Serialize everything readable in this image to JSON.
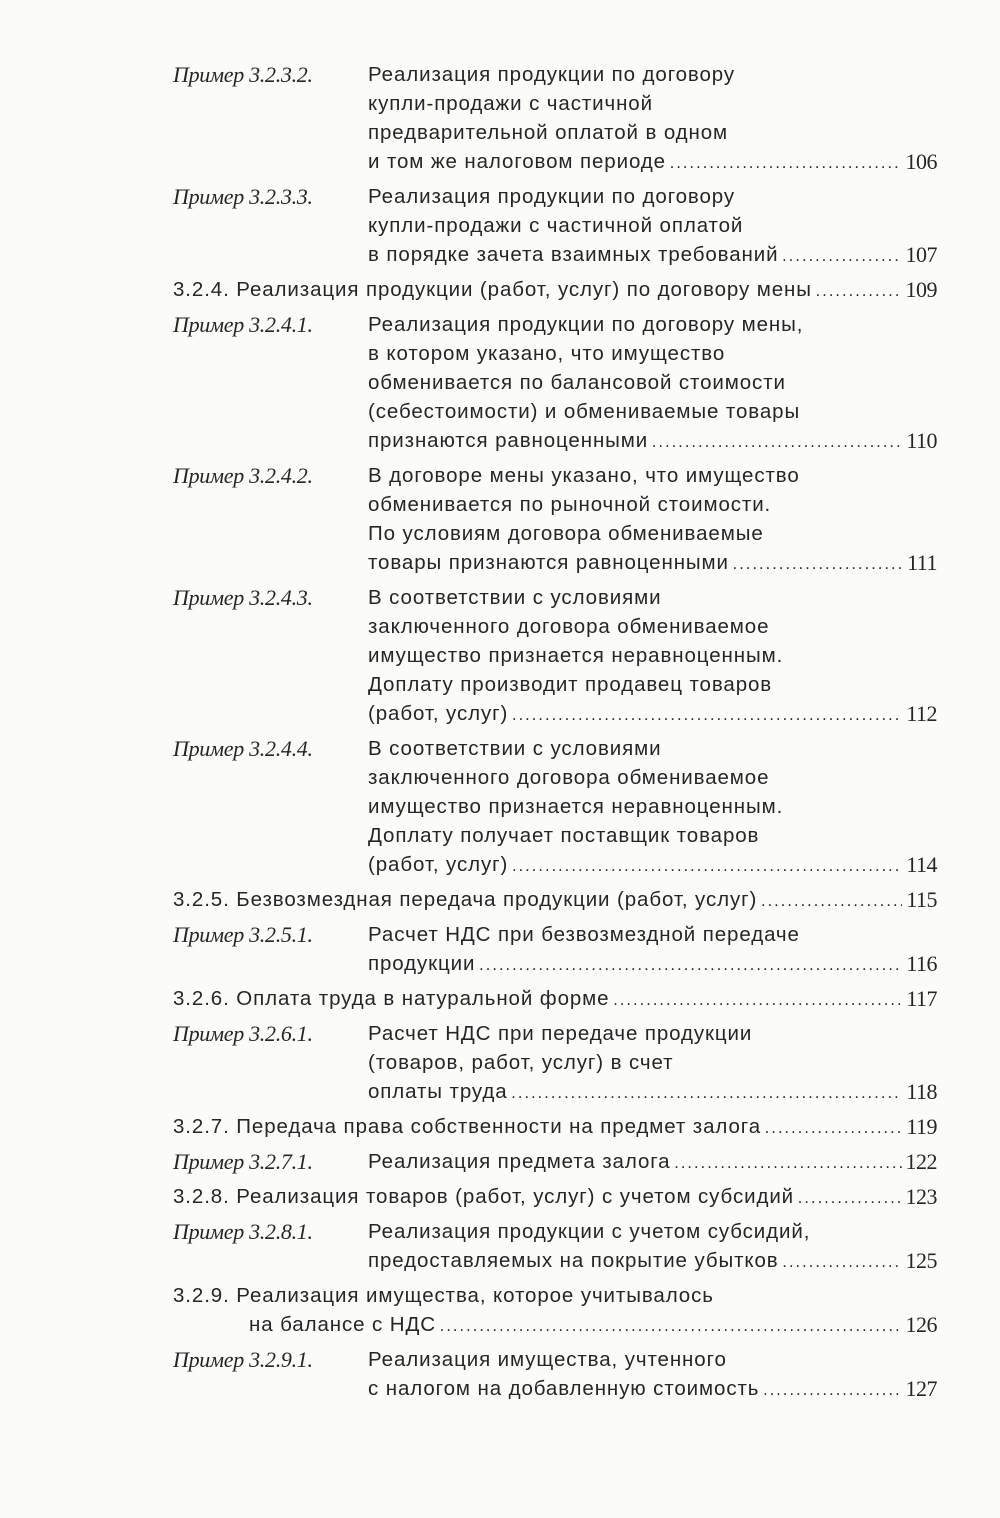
{
  "toc": [
    {
      "type": "example",
      "label": "Пример 3.2.3.2.",
      "lines": [
        "Реализация продукции по договору",
        "купли-продажи с частичной",
        "предварительной оплатой в одном",
        "и том же налоговом периоде"
      ],
      "page": "106"
    },
    {
      "type": "example",
      "label": "Пример 3.2.3.3.",
      "lines": [
        "Реализация продукции по договору",
        "купли-продажи с частичной оплатой",
        "в порядке зачета взаимных требований"
      ],
      "page": "107"
    },
    {
      "type": "section",
      "lines": [
        "3.2.4. Реализация продукции (работ, услуг) по договору мены"
      ],
      "page": "109"
    },
    {
      "type": "example",
      "label": "Пример 3.2.4.1.",
      "lines": [
        "Реализация продукции по договору мены,",
        "в котором указано, что имущество",
        "обменивается по балансовой стоимости",
        "(себестоимости) и обмениваемые товары",
        "признаются равноценными"
      ],
      "page": "110"
    },
    {
      "type": "example",
      "label": "Пример 3.2.4.2.",
      "lines": [
        "В договоре мены указано, что имущество",
        "обменивается по рыночной стоимости.",
        "По условиям договора обмениваемые",
        "товары признаются равноценными"
      ],
      "page": "111"
    },
    {
      "type": "example",
      "label": "Пример 3.2.4.3.",
      "lines": [
        "В соответствии с условиями",
        "заключенного договора обмениваемое",
        "имущество признается неравноценным.",
        "Доплату производит продавец товаров",
        "(работ, услуг)"
      ],
      "page": "112"
    },
    {
      "type": "example",
      "label": "Пример 3.2.4.4.",
      "lines": [
        "В соответствии с условиями",
        "заключенного договора обмениваемое",
        "имущество признается неравноценным.",
        "Доплату получает поставщик товаров",
        "(работ, услуг)"
      ],
      "page": "114"
    },
    {
      "type": "section",
      "lines": [
        "3.2.5.  Безвозмездная передача продукции (работ, услуг)"
      ],
      "page": "115"
    },
    {
      "type": "example",
      "label": "Пример 3.2.5.1.",
      "lines": [
        "Расчет НДС при безвозмездной передаче",
        "продукции"
      ],
      "page": "116"
    },
    {
      "type": "section",
      "lines": [
        "3.2.6.  Оплата труда в натуральной форме"
      ],
      "page": "117"
    },
    {
      "type": "example",
      "label": "Пример 3.2.6.1.",
      "lines": [
        "Расчет НДС при передаче продукции",
        "(товаров, работ, услуг) в счет",
        "оплаты труда"
      ],
      "page": "118"
    },
    {
      "type": "section",
      "lines": [
        "3.2.7.  Передача права собственности на предмет залога"
      ],
      "page": "119"
    },
    {
      "type": "example",
      "label": "Пример 3.2.7.1.",
      "lines": [
        "Реализация предмета залога"
      ],
      "page": "122"
    },
    {
      "type": "section",
      "lines": [
        "3.2.8.  Реализация товаров (работ, услуг) с учетом субсидий"
      ],
      "page": "123"
    },
    {
      "type": "example",
      "label": "Пример 3.2.8.1.",
      "lines": [
        "Реализация продукции с учетом субсидий,",
        "предоставляемых на покрытие убытков"
      ],
      "page": "125"
    },
    {
      "type": "section",
      "lines": [
        "3.2.9.  Реализация имущества, которое учитывалось",
        "на балансе с НДС"
      ],
      "page": "126"
    },
    {
      "type": "example",
      "label": "Пример 3.2.9.1.",
      "lines": [
        "Реализация имущества, учтенного",
        "с налогом на добавленную стоимость"
      ],
      "page": "127"
    }
  ]
}
